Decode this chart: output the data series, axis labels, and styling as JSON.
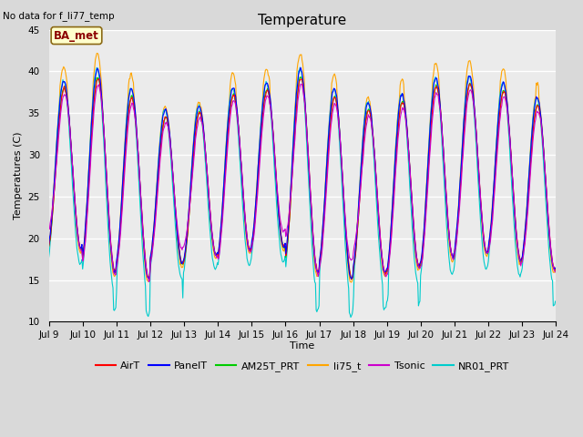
{
  "title": "Temperature",
  "xlabel": "Time",
  "ylabel": "Temperatures (C)",
  "note": "No data for f_li77_temp",
  "legend_label": "BA_met",
  "ylim": [
    10,
    45
  ],
  "yticks": [
    10,
    15,
    20,
    25,
    30,
    35,
    40,
    45
  ],
  "x_start_day": 9,
  "x_end_day": 24,
  "x_tick_days": [
    9,
    10,
    11,
    12,
    13,
    14,
    15,
    16,
    17,
    18,
    19,
    20,
    21,
    22,
    23,
    24
  ],
  "series": {
    "AirT": {
      "color": "#ff0000",
      "lw": 0.8
    },
    "PanelT": {
      "color": "#0000ff",
      "lw": 0.8
    },
    "AM25T_PRT": {
      "color": "#00cc00",
      "lw": 0.8
    },
    "li75_t": {
      "color": "#ffa500",
      "lw": 0.8
    },
    "Tsonic": {
      "color": "#cc00cc",
      "lw": 0.8
    },
    "NR01_PRT": {
      "color": "#00cccc",
      "lw": 0.8
    }
  },
  "bg_color": "#d9d9d9",
  "plot_bg": "#ebebeb",
  "grid_color": "#ffffff",
  "title_fontsize": 11,
  "label_fontsize": 8,
  "tick_fontsize": 7.5,
  "figsize": [
    6.4,
    4.8
  ],
  "dpi": 100
}
